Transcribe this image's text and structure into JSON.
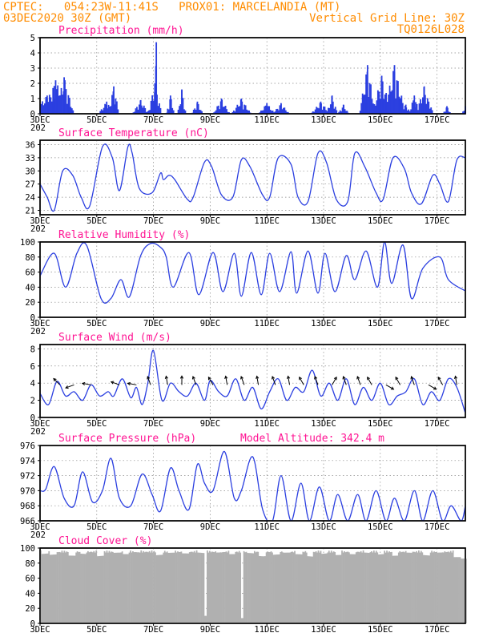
{
  "header": {
    "line1_left": "CPTEC:   054:23W-11:41S   PROX01: MARCELANDIA (MT)",
    "line2_left": "03DEC2020 30Z (GMT)",
    "line2_right": "Vertical Grid Line: 30Z",
    "line3_right": "TQ0126L028"
  },
  "colors": {
    "header": "#ff8c00",
    "title": "#ff1493",
    "series": "#2b3fe0",
    "cloud": "#b0b0b0",
    "arrow": "#000000"
  },
  "x_axis": {
    "start_label": "3DEC",
    "days": 15,
    "labels": [
      "3DEC",
      "5DEC",
      "7DEC",
      "9DEC",
      "11DEC",
      "13DEC",
      "15DEC",
      "17DEC"
    ],
    "label_days": [
      0,
      2,
      4,
      6,
      8,
      10,
      12,
      14
    ],
    "year_fragment": "202"
  },
  "chart_data": [
    {
      "id": "precip",
      "type": "bar",
      "title": "Precipitation (mm/h)",
      "ylim": [
        0,
        5
      ],
      "yticks": [
        0,
        1,
        2,
        3,
        4,
        5
      ],
      "grid": true,
      "events": [
        {
          "day": 0.25,
          "peak": 1.2,
          "width": 0.55
        },
        {
          "day": 0.55,
          "peak": 2.2,
          "width": 0.5
        },
        {
          "day": 0.85,
          "peak": 2.4,
          "width": 0.35
        },
        {
          "day": 2.35,
          "peak": 0.8,
          "width": 0.3
        },
        {
          "day": 2.6,
          "peak": 1.8,
          "width": 0.2
        },
        {
          "day": 3.55,
          "peak": 0.9,
          "width": 0.3
        },
        {
          "day": 4.05,
          "peak": 2.0,
          "width": 0.25
        },
        {
          "day": 4.1,
          "peak": 4.7,
          "width": 0.06
        },
        {
          "day": 4.6,
          "peak": 1.2,
          "width": 0.15
        },
        {
          "day": 5.0,
          "peak": 1.6,
          "width": 0.15
        },
        {
          "day": 5.55,
          "peak": 0.8,
          "width": 0.2
        },
        {
          "day": 6.4,
          "peak": 1.0,
          "width": 0.3
        },
        {
          "day": 7.1,
          "peak": 1.0,
          "width": 0.35
        },
        {
          "day": 8.0,
          "peak": 0.7,
          "width": 0.3
        },
        {
          "day": 8.5,
          "peak": 0.7,
          "width": 0.3
        },
        {
          "day": 9.9,
          "peak": 0.8,
          "width": 0.35
        },
        {
          "day": 10.3,
          "peak": 1.2,
          "width": 0.2
        },
        {
          "day": 10.7,
          "peak": 0.6,
          "width": 0.2
        },
        {
          "day": 11.45,
          "peak": 0.7,
          "width": 0.2
        },
        {
          "day": 11.55,
          "peak": 3.2,
          "width": 0.3
        },
        {
          "day": 12.05,
          "peak": 2.5,
          "width": 0.35
        },
        {
          "day": 12.5,
          "peak": 3.2,
          "width": 0.4
        },
        {
          "day": 12.9,
          "peak": 0.6,
          "width": 0.2
        },
        {
          "day": 13.2,
          "peak": 1.2,
          "width": 0.2
        },
        {
          "day": 13.55,
          "peak": 1.8,
          "width": 0.3
        },
        {
          "day": 13.7,
          "peak": 0.8,
          "width": 0.2
        },
        {
          "day": 14.35,
          "peak": 0.5,
          "width": 0.15
        },
        {
          "day": 15.0,
          "peak": 0.5,
          "width": 0.12
        }
      ]
    },
    {
      "id": "temp",
      "type": "line",
      "title": "Surface Temperature (nC)",
      "ylim": [
        20,
        37
      ],
      "yticks": [
        21,
        24,
        27,
        30,
        33,
        36
      ],
      "grid": true,
      "x_days": [
        0,
        0.25,
        0.5,
        0.8,
        1.15,
        1.45,
        1.75,
        2.2,
        2.55,
        2.8,
        3.1,
        3.25,
        3.5,
        3.95,
        4.25,
        4.35,
        4.55,
        4.75,
        5.2,
        5.4,
        5.8,
        6.05,
        6.4,
        6.8,
        7.1,
        7.4,
        7.85,
        8.1,
        8.4,
        8.85,
        9.1,
        9.45,
        9.8,
        10.1,
        10.45,
        10.85,
        11.1,
        11.45,
        11.85,
        12.1,
        12.45,
        12.85,
        13.1,
        13.45,
        13.85,
        14.1,
        14.4,
        14.7,
        15.0
      ],
      "y_values": [
        27,
        24,
        21,
        30,
        29,
        24,
        22,
        35.5,
        33,
        25.5,
        35.5,
        34,
        26,
        25,
        29.5,
        28,
        29,
        28,
        23.5,
        24,
        32,
        31,
        24.5,
        24,
        32.5,
        31,
        24.5,
        24,
        33,
        31.5,
        24,
        23,
        34,
        32,
        23.5,
        23,
        34,
        31,
        25,
        23.5,
        33,
        30.5,
        25,
        22.5,
        29,
        27,
        23,
        32.5,
        33
      ]
    },
    {
      "id": "rh",
      "type": "line",
      "title": "Relative Humidity (%)",
      "ylim": [
        0,
        100
      ],
      "yticks": [
        0,
        20,
        40,
        60,
        80,
        100
      ],
      "grid": true,
      "x_days": [
        0,
        0.5,
        0.9,
        1.3,
        1.65,
        2.15,
        2.5,
        2.85,
        3.15,
        3.55,
        3.9,
        4.25,
        4.45,
        4.7,
        5.25,
        5.6,
        6.1,
        6.45,
        6.85,
        7.1,
        7.45,
        7.8,
        8.1,
        8.45,
        8.85,
        9.05,
        9.45,
        9.8,
        10.05,
        10.4,
        10.8,
        11.1,
        11.5,
        11.9,
        12.15,
        12.4,
        12.8,
        13.1,
        13.5,
        14.1,
        14.4,
        15.0
      ],
      "y_values": [
        55,
        85,
        40,
        85,
        95,
        25,
        25,
        50,
        27,
        82,
        98,
        93,
        80,
        40,
        86,
        30,
        86,
        34,
        85,
        28,
        86,
        30,
        85,
        34,
        87,
        32,
        88,
        32,
        85,
        34,
        82,
        50,
        88,
        40,
        100,
        45,
        96,
        25,
        65,
        80,
        50,
        35
      ]
    },
    {
      "id": "wind",
      "type": "line",
      "title": "Surface Wind (m/s)",
      "ylim": [
        0,
        8.5
      ],
      "yticks": [
        0,
        2,
        4,
        6,
        8
      ],
      "grid": true,
      "x_days": [
        0,
        0.3,
        0.6,
        0.9,
        1.2,
        1.5,
        1.8,
        2.1,
        2.4,
        2.6,
        2.9,
        3.2,
        3.4,
        3.6,
        3.8,
        4.0,
        4.3,
        4.6,
        4.9,
        5.2,
        5.5,
        5.8,
        6.0,
        6.3,
        6.6,
        6.9,
        7.2,
        7.5,
        7.8,
        8.1,
        8.4,
        8.7,
        9.0,
        9.3,
        9.6,
        9.9,
        10.2,
        10.5,
        10.8,
        11.1,
        11.4,
        11.7,
        12.0,
        12.3,
        12.6,
        12.9,
        13.2,
        13.5,
        13.8,
        14.1,
        14.4,
        14.7,
        15.0
      ],
      "y_values": [
        2.8,
        1.5,
        4.2,
        2.5,
        3.0,
        2.0,
        3.8,
        2.5,
        3.0,
        2.5,
        4.5,
        2.3,
        3.5,
        1.5,
        4.0,
        7.8,
        2.0,
        4.0,
        3.0,
        2.5,
        4.0,
        2.0,
        4.3,
        3.0,
        2.5,
        4.5,
        2.0,
        3.5,
        1.0,
        3.0,
        4.5,
        2.0,
        3.5,
        3.0,
        5.5,
        2.5,
        4.0,
        2.0,
        4.5,
        1.5,
        3.5,
        2.0,
        4.0,
        1.5,
        2.5,
        3.0,
        4.5,
        1.5,
        3.0,
        2.0,
        4.5,
        3.5,
        0.5
      ],
      "arrow_days": [
        0.7,
        1.2,
        1.8,
        2.8,
        3.4,
        3.9,
        4.5,
        5.0,
        5.5,
        6.1,
        6.6,
        7.2,
        7.7,
        8.3,
        8.8,
        9.3,
        9.8,
        10.3,
        10.8,
        11.3,
        11.7,
        12.2,
        12.7,
        13.2,
        13.7,
        14.2,
        14.7
      ],
      "arrow_dirs_deg": [
        225,
        160,
        190,
        200,
        190,
        250,
        260,
        270,
        250,
        240,
        260,
        250,
        260,
        250,
        260,
        240,
        250,
        300,
        250,
        250,
        240,
        30,
        240,
        250,
        30,
        240,
        260
      ]
    },
    {
      "id": "pres",
      "type": "line",
      "title": "Surface Pressure (hPa)",
      "annotation": "Model Altitude: 342.4 m",
      "ylim": [
        966,
        976
      ],
      "yticks": [
        966,
        968,
        970,
        972,
        974,
        976
      ],
      "grid": true,
      "x_days": [
        0,
        0.2,
        0.5,
        0.85,
        1.2,
        1.5,
        1.85,
        2.2,
        2.5,
        2.8,
        3.2,
        3.6,
        3.95,
        4.25,
        4.6,
        4.9,
        5.25,
        5.55,
        5.8,
        6.1,
        6.5,
        6.85,
        7.1,
        7.5,
        7.85,
        8.2,
        8.5,
        8.85,
        9.2,
        9.5,
        9.85,
        10.2,
        10.5,
        10.85,
        11.2,
        11.5,
        11.85,
        12.2,
        12.5,
        12.85,
        13.2,
        13.5,
        13.85,
        14.2,
        14.5,
        14.85,
        15.0
      ],
      "y_values": [
        970,
        970.2,
        973.2,
        969,
        968,
        972.5,
        968.5,
        970,
        974.3,
        969,
        968,
        972.2,
        969.5,
        967.3,
        973,
        970,
        967.5,
        973.5,
        971,
        970,
        975.2,
        969,
        970,
        974.5,
        967.5,
        966,
        972,
        966,
        971,
        966,
        970.5,
        966,
        969.5,
        966,
        969.5,
        966,
        970,
        966,
        969,
        966,
        970,
        966,
        970,
        966,
        968,
        966,
        968
      ]
    },
    {
      "id": "cloud",
      "type": "area",
      "title": "Cloud Cover (%)",
      "ylim": [
        0,
        100
      ],
      "yticks": [
        0,
        20,
        40,
        60,
        80,
        100
      ],
      "grid": true,
      "baseline": 97,
      "dips": [
        {
          "day": 0.15,
          "value": 92
        },
        {
          "day": 0.45,
          "value": 90
        },
        {
          "day": 0.6,
          "value": 93
        },
        {
          "day": 1.1,
          "value": 88
        },
        {
          "day": 1.5,
          "value": 91
        },
        {
          "day": 2.1,
          "value": 89
        },
        {
          "day": 2.7,
          "value": 92
        },
        {
          "day": 3.0,
          "value": 90
        },
        {
          "day": 3.4,
          "value": 93
        },
        {
          "day": 4.2,
          "value": 90
        },
        {
          "day": 4.6,
          "value": 92
        },
        {
          "day": 5.1,
          "value": 91
        },
        {
          "day": 5.7,
          "value": 93
        },
        {
          "day": 5.82,
          "value": 10
        },
        {
          "day": 6.3,
          "value": 93
        },
        {
          "day": 6.75,
          "value": 90
        },
        {
          "day": 7.1,
          "value": 7
        },
        {
          "day": 7.4,
          "value": 92
        },
        {
          "day": 7.8,
          "value": 89
        },
        {
          "day": 8.3,
          "value": 90
        },
        {
          "day": 8.7,
          "value": 92
        },
        {
          "day": 9.1,
          "value": 90
        },
        {
          "day": 9.5,
          "value": 88
        },
        {
          "day": 10.0,
          "value": 92
        },
        {
          "day": 10.5,
          "value": 89
        },
        {
          "day": 11.0,
          "value": 90
        },
        {
          "day": 11.5,
          "value": 93
        },
        {
          "day": 12.0,
          "value": 91
        },
        {
          "day": 12.5,
          "value": 88
        },
        {
          "day": 13.0,
          "value": 92
        },
        {
          "day": 13.6,
          "value": 90
        },
        {
          "day": 14.1,
          "value": 93
        },
        {
          "day": 14.7,
          "value": 86
        },
        {
          "day": 14.95,
          "value": 84
        }
      ]
    }
  ]
}
